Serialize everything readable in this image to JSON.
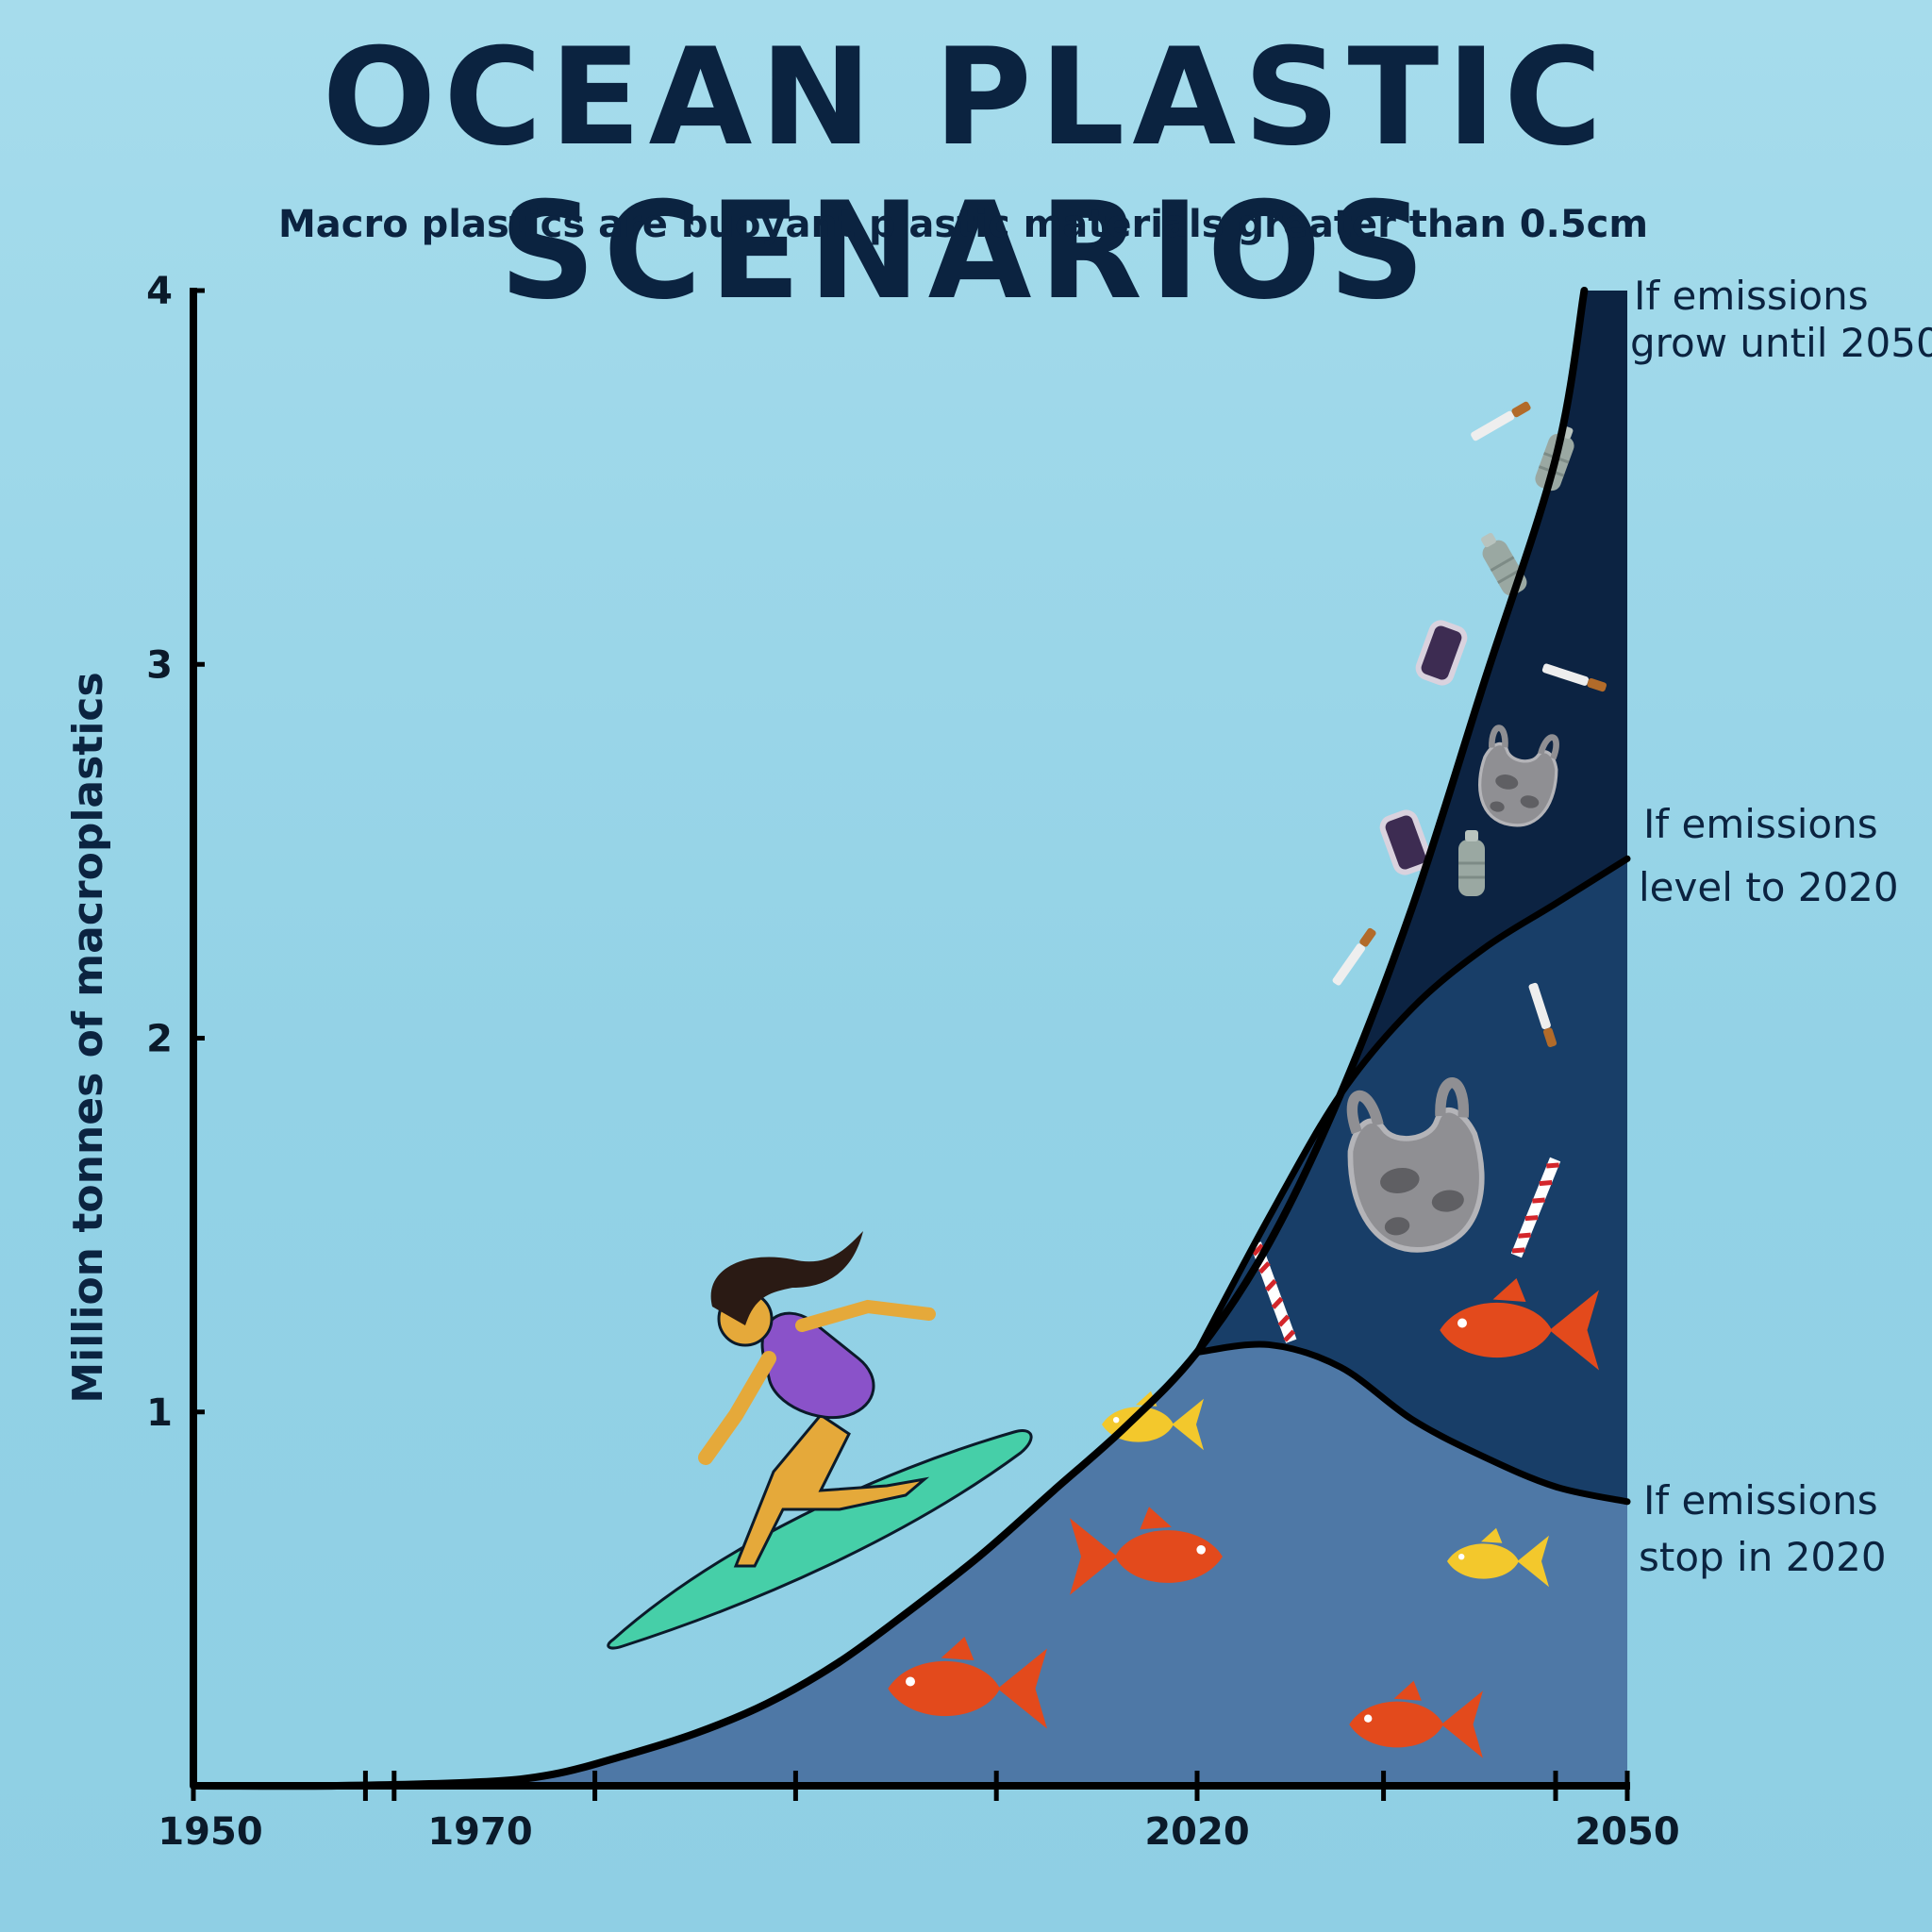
{
  "chart_data": {
    "type": "area",
    "title": "OCEAN PLASTIC SCENARIOS",
    "subtitle": "Macro plastics are buoyant plastic materials greater than 0.5cm",
    "ylabel": "Million tonnes of macroplastics",
    "xlabel": "",
    "xlim": [
      1950,
      2050
    ],
    "ylim": [
      0,
      4
    ],
    "x_ticks": [
      1950,
      1970,
      2020,
      2050
    ],
    "y_ticks": [
      1,
      2,
      3,
      4
    ],
    "grid": false,
    "series": [
      {
        "name": "If emissions grow until 2050",
        "color": "#0c2342",
        "x": [
          1950,
          1960,
          1970,
          1975,
          1980,
          1985,
          1990,
          1995,
          2000,
          2005,
          2010,
          2015,
          2020,
          2025,
          2030,
          2035,
          2040,
          2045,
          2047
        ],
        "values": [
          0,
          0,
          0.01,
          0.03,
          0.08,
          0.14,
          0.22,
          0.33,
          0.47,
          0.62,
          0.79,
          0.96,
          1.16,
          1.45,
          1.85,
          2.35,
          2.95,
          3.55,
          4.0
        ]
      },
      {
        "name": "If emissions level to 2020",
        "color": "#183e68",
        "x": [
          2020,
          2025,
          2030,
          2035,
          2040,
          2045,
          2050
        ],
        "values": [
          1.16,
          1.52,
          1.85,
          2.08,
          2.24,
          2.36,
          2.48
        ]
      },
      {
        "name": "If emissions stop in 2020",
        "color": "#4e78a6",
        "x": [
          2020,
          2025,
          2030,
          2035,
          2040,
          2045,
          2050
        ],
        "values": [
          1.16,
          1.18,
          1.12,
          0.98,
          0.88,
          0.8,
          0.76
        ]
      }
    ]
  },
  "scenario_labels": {
    "grow": [
      "If emissions",
      "grow until 2050"
    ],
    "level": [
      "If emissions",
      "level to 2020"
    ],
    "stop": [
      "If emissions",
      "stop in 2020"
    ]
  },
  "colors": {
    "background": "#9ad5e8",
    "grow_fill": "#0c2342",
    "level_fill": "#183e68",
    "stop_fill": "#4e78a6",
    "axis": "#000000"
  },
  "illustrations": [
    "surfer",
    "surfboard",
    "goldfish",
    "plastic-bag",
    "bottle",
    "cigarette",
    "straw",
    "cup"
  ]
}
